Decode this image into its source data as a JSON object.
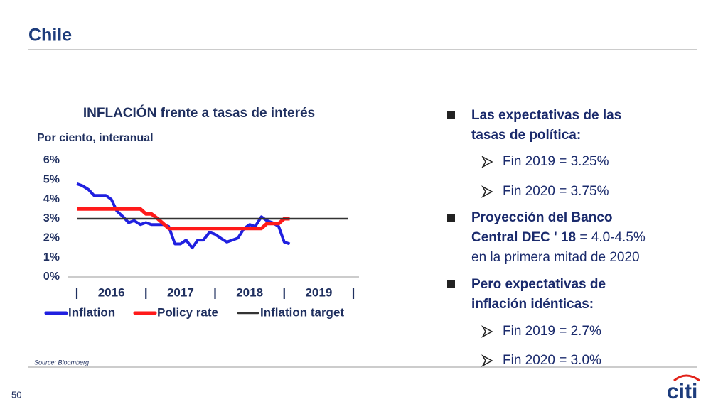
{
  "slide": {
    "title": "Chile",
    "page_number": "50",
    "source": "Source: Bloomberg",
    "logo": "citi",
    "bullets": [
      {
        "level": 1,
        "lines": [
          [
            {
              "text": "Las expectativas de las",
              "bold": true
            }
          ],
          [
            {
              "text": "tasas de política:",
              "bold": true
            }
          ]
        ]
      },
      {
        "level": 2,
        "lines": [
          [
            {
              "text": "Fin 2019 = 3.25%",
              "bold": false
            }
          ]
        ]
      },
      {
        "level": 2,
        "lines": [
          [
            {
              "text": "Fin 2020 = 3.75%",
              "bold": false
            }
          ]
        ]
      },
      {
        "level": 1,
        "lines": [
          [
            {
              "text": "Proyección del Banco",
              "bold": true
            }
          ],
          [
            {
              "text": "Central DEC ' 18",
              "bold": true
            },
            {
              "text": " = 4.0-4.5%",
              "bold": false
            }
          ],
          [
            {
              "text": "en la primera mitad de 2020",
              "bold": false
            }
          ]
        ]
      },
      {
        "level": 1,
        "lines": [
          [
            {
              "text": "Pero expectativas de",
              "bold": true
            }
          ],
          [
            {
              "text": "inflación idénticas:",
              "bold": true
            }
          ]
        ]
      },
      {
        "level": 2,
        "lines": [
          [
            {
              "text": " Fin 2019 = 2.7%",
              "bold": false
            }
          ]
        ]
      },
      {
        "level": 2,
        "lines": [
          [
            {
              "text": " Fin 2020 = 3.0%",
              "bold": false
            }
          ]
        ]
      }
    ]
  },
  "chart_data": {
    "type": "line",
    "title": "INFLACIÓN frente a tasas de interés",
    "subtitle": "Por ciento, interanual",
    "x": [
      2016,
      2016.08,
      2016.17,
      2016.25,
      2016.33,
      2016.42,
      2016.5,
      2016.58,
      2016.67,
      2016.75,
      2016.83,
      2016.92,
      2017,
      2017.08,
      2017.17,
      2017.25,
      2017.33,
      2017.42,
      2017.5,
      2017.58,
      2017.67,
      2017.75,
      2017.83,
      2017.92,
      2018,
      2018.08,
      2018.17,
      2018.25,
      2018.33,
      2018.42,
      2018.5,
      2018.58,
      2018.67,
      2018.75,
      2018.83,
      2018.92,
      2019,
      2019.08,
      2019.17,
      2019.25,
      2019.33,
      2019.42,
      2019.5,
      2019.58,
      2019.67,
      2019.75,
      2019.83,
      2019.92
    ],
    "series": [
      {
        "name": "Inflation",
        "color": "#2020e0",
        "values": [
          4.8,
          4.7,
          4.5,
          4.2,
          4.2,
          4.2,
          4.0,
          3.4,
          3.1,
          2.8,
          2.9,
          2.7,
          2.8,
          2.7,
          2.7,
          2.7,
          2.6,
          1.7,
          1.7,
          1.9,
          1.5,
          1.9,
          1.9,
          2.3,
          2.2,
          2.0,
          1.8,
          1.9,
          2.0,
          2.5,
          2.7,
          2.6,
          3.1,
          2.9,
          2.8,
          2.6,
          1.8,
          1.7,
          null,
          null,
          null,
          null,
          null,
          null,
          null,
          null,
          null,
          null
        ]
      },
      {
        "name": "Policy rate",
        "color": "#ff1a1a",
        "values": [
          3.5,
          3.5,
          3.5,
          3.5,
          3.5,
          3.5,
          3.5,
          3.5,
          3.5,
          3.5,
          3.5,
          3.5,
          3.25,
          3.25,
          3.0,
          2.75,
          2.5,
          2.5,
          2.5,
          2.5,
          2.5,
          2.5,
          2.5,
          2.5,
          2.5,
          2.5,
          2.5,
          2.5,
          2.5,
          2.5,
          2.5,
          2.5,
          2.5,
          2.75,
          2.75,
          2.75,
          3.0,
          3.0,
          null,
          null,
          null,
          null,
          null,
          null,
          null,
          null,
          null,
          null
        ]
      },
      {
        "name": "Inflation target",
        "color": "#333333",
        "values": [
          3,
          3,
          3,
          3,
          3,
          3,
          3,
          3,
          3,
          3,
          3,
          3,
          3,
          3,
          3,
          3,
          3,
          3,
          3,
          3,
          3,
          3,
          3,
          3,
          3,
          3,
          3,
          3,
          3,
          3,
          3,
          3,
          3,
          3,
          3,
          3,
          3,
          3,
          3,
          3,
          3,
          3,
          3,
          3,
          3,
          3,
          3,
          3
        ]
      }
    ],
    "xlim": [
      2016,
      2020
    ],
    "xticks": [
      {
        "value": 2016,
        "label": "|"
      },
      {
        "value": 2016.5,
        "label": "2016"
      },
      {
        "value": 2017,
        "label": "|"
      },
      {
        "value": 2017.5,
        "label": "2017"
      },
      {
        "value": 2018,
        "label": "|"
      },
      {
        "value": 2018.5,
        "label": "2018"
      },
      {
        "value": 2019,
        "label": "|"
      },
      {
        "value": 2019.5,
        "label": "2019"
      },
      {
        "value": 2020,
        "label": "|"
      }
    ],
    "ylim": [
      0,
      6
    ],
    "yticks": [
      {
        "value": 0,
        "label": "0%"
      },
      {
        "value": 1,
        "label": "1%"
      },
      {
        "value": 2,
        "label": "2%"
      },
      {
        "value": 3,
        "label": "3%"
      },
      {
        "value": 4,
        "label": "4%"
      },
      {
        "value": 5,
        "label": "5%"
      },
      {
        "value": 6,
        "label": "6%"
      }
    ],
    "grid": false,
    "legend": "bottom"
  }
}
